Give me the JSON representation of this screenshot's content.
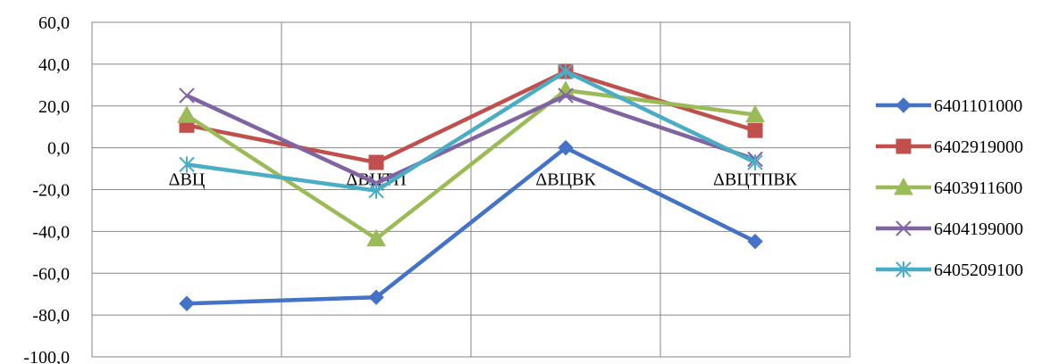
{
  "chart_data": {
    "type": "line",
    "title": "",
    "xlabel": "",
    "ylabel": "",
    "categories": [
      "ΔВЦ",
      "ΔВЦТП",
      "ΔВЦВК",
      "ΔВЦТПВК"
    ],
    "ylim": [
      -100,
      60
    ],
    "yticks": [
      60,
      40,
      20,
      0,
      -20,
      -40,
      -60,
      -80,
      -100
    ],
    "ytick_labels": [
      "60,0",
      "40,0",
      "20,0",
      "0,0",
      "-20,0",
      "-40,0",
      "-60,0",
      "-80,0",
      "-100,0"
    ],
    "grid": true,
    "legend_position": "right",
    "series": [
      {
        "name": "6401101000",
        "color": "#4472C4",
        "marker": "diamond",
        "values": [
          -74.5,
          -71.5,
          0.0,
          -44.8
        ]
      },
      {
        "name": "6402919000",
        "color": "#C0504D",
        "marker": "square",
        "values": [
          10.8,
          -7.0,
          36.5,
          8.3
        ]
      },
      {
        "name": "6403911600",
        "color": "#9BBB59",
        "marker": "triangle",
        "values": [
          15.5,
          -43.5,
          27.5,
          15.8
        ]
      },
      {
        "name": "6404199000",
        "color": "#8064A2",
        "marker": "x",
        "values": [
          25.0,
          -17.0,
          25.0,
          -5.5
        ]
      },
      {
        "name": "6405209100",
        "color": "#4BACC6",
        "marker": "star",
        "values": [
          -8.0,
          -20.5,
          36.5,
          -7.0
        ]
      }
    ]
  }
}
